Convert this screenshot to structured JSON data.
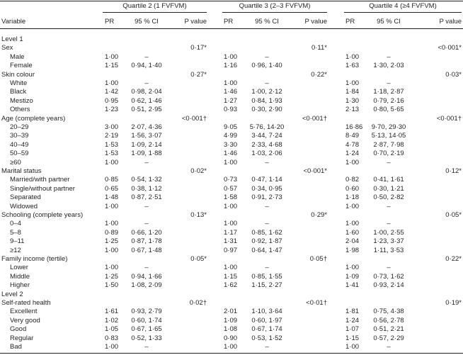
{
  "header": {
    "variable": "Variable",
    "groups": [
      "Quartile 2 (1 FVFVM)",
      "Quartile 3 (2–3 FVFVM)",
      "Quartile 4 (≥4 FVFVM)"
    ],
    "columns": [
      "PR",
      "95 % CI",
      "P value"
    ]
  },
  "sections": [
    {
      "title": "Level 1",
      "groups": [
        {
          "label": "Sex",
          "p": [
            "0·17*",
            "0·11*",
            "<0·001*"
          ],
          "rows": [
            {
              "label": "Male",
              "cells": [
                [
                  "1·00",
                  "–"
                ],
                [
                  "1·00",
                  "–"
                ],
                [
                  "1·00",
                  "–"
                ]
              ]
            },
            {
              "label": "Female",
              "cells": [
                [
                  "1·15",
                  "0·94, 1·40"
                ],
                [
                  "1·16",
                  "0·96, 1·40"
                ],
                [
                  "1·63",
                  "1·30, 2·03"
                ]
              ]
            }
          ]
        },
        {
          "label": "Skin colour",
          "p": [
            "0·27*",
            "0·22*",
            "0·03*"
          ],
          "rows": [
            {
              "label": "White",
              "cells": [
                [
                  "1·00",
                  "–"
                ],
                [
                  "1·00",
                  "–"
                ],
                [
                  "1·00",
                  "–"
                ]
              ]
            },
            {
              "label": "Black",
              "cells": [
                [
                  "1·42",
                  "0·98, 2·04"
                ],
                [
                  "1·46",
                  "1·00, 2·12"
                ],
                [
                  "1·84",
                  "1·18, 2·87"
                ]
              ]
            },
            {
              "label": "Mestizo",
              "cells": [
                [
                  "0·95",
                  "0·62, 1·46"
                ],
                [
                  "1·27",
                  "0·84, 1·93"
                ],
                [
                  "1·30",
                  "0·79, 2·16"
                ]
              ]
            },
            {
              "label": "Others",
              "cells": [
                [
                  "1·23",
                  "0·51, 2·95"
                ],
                [
                  "0·93",
                  "0·30, 2·90"
                ],
                [
                  "2·13",
                  "0·80, 5·65"
                ]
              ]
            }
          ]
        },
        {
          "label": "Age (complete years)",
          "p": [
            "<0·001†",
            "<0·001†",
            "<0·001†"
          ],
          "rows": [
            {
              "label": "20–29",
              "cells": [
                [
                  "3·00",
                  "2·07, 4·36"
                ],
                [
                  "9·05",
                  "5·76, 14·20"
                ],
                [
                  "16·86",
                  "9·70, 29·30"
                ]
              ]
            },
            {
              "label": "30–39",
              "cells": [
                [
                  "2·19",
                  "1·56, 3·07"
                ],
                [
                  "4·99",
                  "3·44, 7·24"
                ],
                [
                  "8·49",
                  "5·13, 14·05"
                ]
              ]
            },
            {
              "label": "40–49",
              "cells": [
                [
                  "1·53",
                  "1·09, 2·14"
                ],
                [
                  "3·30",
                  "2·33, 4·68"
                ],
                [
                  "4·78",
                  "2·87, 7·98"
                ]
              ]
            },
            {
              "label": "50–59",
              "cells": [
                [
                  "1·53",
                  "1·09, 1·88"
                ],
                [
                  "1·46",
                  "1·03, 2·06"
                ],
                [
                  "1·24",
                  "0·70, 2·19"
                ]
              ]
            },
            {
              "label": "≥60",
              "cells": [
                [
                  "1·00",
                  "–"
                ],
                [
                  "1·00",
                  "–"
                ],
                [
                  "1·00",
                  "–"
                ]
              ]
            }
          ]
        },
        {
          "label": "Marital status",
          "p": [
            "0·02*",
            "<0·001*",
            "0·12*"
          ],
          "rows": [
            {
              "label": "Married/with partner",
              "cells": [
                [
                  "0·85",
                  "0·54, 1·32"
                ],
                [
                  "0·73",
                  "0·47, 1·14"
                ],
                [
                  "0·82",
                  "0·41, 1·61"
                ]
              ]
            },
            {
              "label": "Single/without partner",
              "cells": [
                [
                  "0·65",
                  "0·38, 1·12"
                ],
                [
                  "0·57",
                  "0·34, 0·95"
                ],
                [
                  "0·60",
                  "0·30, 1·21"
                ]
              ]
            },
            {
              "label": "Separated",
              "cells": [
                [
                  "1·48",
                  "0·87, 2·51"
                ],
                [
                  "1·58",
                  "0·91, 2·73"
                ],
                [
                  "1·18",
                  "0·50, 2·82"
                ]
              ]
            },
            {
              "label": "Widowed",
              "cells": [
                [
                  "1·00",
                  "–"
                ],
                [
                  "1·00",
                  "–"
                ],
                [
                  "1·00",
                  "–"
                ]
              ]
            }
          ]
        },
        {
          "label": "Schooling (complete years)",
          "p": [
            "0·13*",
            "0·29*",
            "0·05*"
          ],
          "rows": [
            {
              "label": "0–4",
              "cells": [
                [
                  "1·00",
                  "–"
                ],
                [
                  "1·00",
                  "–"
                ],
                [
                  "1·00",
                  "–"
                ]
              ]
            },
            {
              "label": "5–8",
              "cells": [
                [
                  "0·89",
                  "0·66, 1·20"
                ],
                [
                  "1·17",
                  "0·85, 1·62"
                ],
                [
                  "1·60",
                  "1·00, 2·55"
                ]
              ]
            },
            {
              "label": "9–11",
              "cells": [
                [
                  "1·25",
                  "0·87, 1·78"
                ],
                [
                  "1·31",
                  "0·92, 1·87"
                ],
                [
                  "2·04",
                  "1·23, 3·37"
                ]
              ]
            },
            {
              "label": "≥12",
              "cells": [
                [
                  "1·00",
                  "0·67, 1·48"
                ],
                [
                  "0·97",
                  "0·64, 1·47"
                ],
                [
                  "1·98",
                  "1·11, 3·53"
                ]
              ]
            }
          ]
        },
        {
          "label": "Family income (tertile)",
          "p": [
            "0·05*",
            "0·05†",
            "0·22*"
          ],
          "rows": [
            {
              "label": "Lower",
              "cells": [
                [
                  "1·00",
                  "–"
                ],
                [
                  "1·00",
                  "–"
                ],
                [
                  "1·00",
                  "–"
                ]
              ]
            },
            {
              "label": "Middle",
              "cells": [
                [
                  "1·25",
                  "0·94, 1·66"
                ],
                [
                  "1·15",
                  "0·85, 1·55"
                ],
                [
                  "1·09",
                  "0·73, 1·62"
                ]
              ]
            },
            {
              "label": "Higher",
              "cells": [
                [
                  "1·50",
                  "1·08, 2·09"
                ],
                [
                  "1·62",
                  "1·15, 2·27"
                ],
                [
                  "1·41",
                  "0·93, 2·14"
                ]
              ]
            }
          ]
        }
      ]
    },
    {
      "title": "Level 2",
      "groups": [
        {
          "label": "Self-rated health",
          "p": [
            "0·02†",
            "<0·01†",
            "0·19*"
          ],
          "rows": [
            {
              "label": "Excellent",
              "cells": [
                [
                  "1·61",
                  "0·93, 2·79"
                ],
                [
                  "2·01",
                  "1·10, 3·64"
                ],
                [
                  "1·81",
                  "0·75, 4·38"
                ]
              ]
            },
            {
              "label": "Very good",
              "cells": [
                [
                  "1·02",
                  "0·60, 1·74"
                ],
                [
                  "1·09",
                  "0·60, 1·97"
                ],
                [
                  "1·24",
                  "0·56, 2·78"
                ]
              ]
            },
            {
              "label": "Good",
              "cells": [
                [
                  "1·05",
                  "0·67, 1·65"
                ],
                [
                  "1·08",
                  "0·67, 1·74"
                ],
                [
                  "1·07",
                  "0·51, 2·21"
                ]
              ]
            },
            {
              "label": "Regular",
              "cells": [
                [
                  "0·83",
                  "0·52, 1·33"
                ],
                [
                  "0·90",
                  "0·53, 1·52"
                ],
                [
                  "1·15",
                  "0·57, 2·29"
                ]
              ]
            },
            {
              "label": "Bad",
              "cells": [
                [
                  "1·00",
                  "–"
                ],
                [
                  "1·00",
                  "–"
                ],
                [
                  "1·00",
                  "–"
                ]
              ]
            }
          ]
        }
      ]
    }
  ]
}
